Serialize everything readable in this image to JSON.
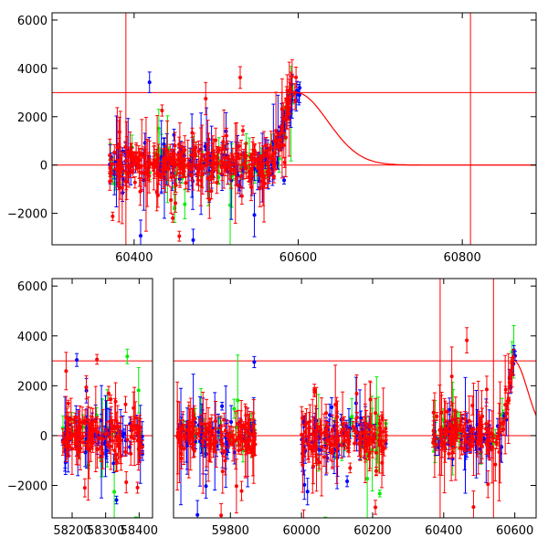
{
  "chart_data": [
    {
      "type": "scatter",
      "panel": "top",
      "xlim": [
        60300,
        60890
      ],
      "ylim": [
        -3300,
        6300
      ],
      "xticks": [
        60400,
        60600,
        60800
      ],
      "yticks": [
        -2000,
        0,
        2000,
        4000,
        6000
      ],
      "xtick_labels": [
        "60400",
        "60600",
        "60800"
      ],
      "ytick_labels": [
        "−2000",
        "0",
        "2000",
        "4000",
        "6000"
      ],
      "hlines": [
        0,
        3000
      ],
      "vlines": [
        60390,
        60810
      ],
      "model": {
        "baseline": 0,
        "peak_x": 60597,
        "peak_y": 3000,
        "rise_sigma": 20,
        "decay_sigma": 55,
        "xrange": [
          60370,
          60890
        ]
      },
      "series": [
        {
          "color": "#ff0000",
          "x_ranges": [
            [
              60370,
              60598
            ]
          ],
          "n": 320
        },
        {
          "color": "#0000ff",
          "x_ranges": [
            [
              60370,
              60602
            ]
          ],
          "n": 140
        },
        {
          "color": "#00ee00",
          "x_ranges": [
            [
              60370,
              60600
            ]
          ],
          "n": 70
        }
      ],
      "title": "",
      "xlabel": "",
      "ylabel": "",
      "grid": false
    },
    {
      "type": "scatter",
      "panel": "bottom",
      "ylim": [
        -3300,
        6300
      ],
      "yticks": [
        -2000,
        0,
        2000,
        4000,
        6000
      ],
      "ytick_labels": [
        "−2000",
        "0",
        "2000",
        "4000",
        "6000"
      ],
      "hlines": [
        0,
        3000
      ],
      "vlines": [
        60390,
        60540
      ],
      "segments": [
        {
          "xlim": [
            58140,
            58440
          ],
          "xticks": [
            58200,
            58300,
            58400
          ],
          "xtick_labels": [
            "58200",
            "58300",
            "58400"
          ]
        },
        {
          "xlim": [
            59640,
            60660
          ],
          "xticks": [
            59800,
            60000,
            60200,
            60400,
            60600
          ],
          "xtick_labels": [
            "59800",
            "60000",
            "60200",
            "60400",
            "60600"
          ]
        }
      ],
      "model": {
        "baseline": 0,
        "peak_x": 60597,
        "peak_y": 3000,
        "rise_sigma": 20,
        "decay_sigma": 55,
        "xrange": [
          60370,
          60660
        ]
      },
      "series": [
        {
          "color": "#ff0000",
          "x_ranges": [
            [
              58170,
              58410
            ],
            [
              59650,
              59870
            ],
            [
              60000,
              60240
            ],
            [
              60370,
              60600
            ]
          ],
          "n": 520
        },
        {
          "color": "#0000ff",
          "x_ranges": [
            [
              58170,
              58410
            ],
            [
              59650,
              59870
            ],
            [
              60000,
              60240
            ],
            [
              60370,
              60602
            ]
          ],
          "n": 240
        },
        {
          "color": "#00ee00",
          "x_ranges": [
            [
              58170,
              58410
            ],
            [
              59650,
              59870
            ],
            [
              60000,
              60240
            ],
            [
              60370,
              60600
            ]
          ],
          "n": 110
        }
      ],
      "title": "",
      "xlabel": "",
      "ylabel": "",
      "grid": false
    }
  ]
}
